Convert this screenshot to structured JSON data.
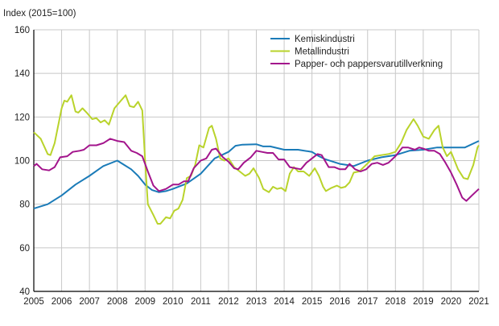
{
  "chart_data": {
    "type": "line",
    "title": "",
    "ylabel": "Index (2015=100)",
    "xlabel": "",
    "xlim": [
      2005,
      2021
    ],
    "ylim": [
      40,
      160
    ],
    "x_ticks": [
      "2005",
      "2006",
      "2007",
      "2008",
      "2009",
      "2010",
      "2011",
      "2012",
      "2013",
      "2014",
      "2015",
      "2016",
      "2017",
      "2018",
      "2019",
      "2020",
      "2021"
    ],
    "y_ticks": [
      "40",
      "60",
      "80",
      "100",
      "120",
      "140",
      "160"
    ],
    "grid": true,
    "legend_position": "top-right",
    "series": [
      {
        "name": "Kemiskindustri",
        "color": "#1a7bb8",
        "points": [
          [
            2005,
            78
          ],
          [
            2005.5,
            80
          ],
          [
            2006,
            84
          ],
          [
            2006.5,
            89
          ],
          [
            2007,
            93
          ],
          [
            2007.5,
            97.5
          ],
          [
            2008,
            100
          ],
          [
            2008.25,
            98
          ],
          [
            2008.5,
            96
          ],
          [
            2008.75,
            93
          ],
          [
            2009,
            89
          ],
          [
            2009.25,
            86.5
          ],
          [
            2009.5,
            85.5
          ],
          [
            2009.75,
            86
          ],
          [
            2010,
            87
          ],
          [
            2010.5,
            89.5
          ],
          [
            2011,
            94
          ],
          [
            2011.5,
            101
          ],
          [
            2012,
            104
          ],
          [
            2012.25,
            106.8
          ],
          [
            2012.5,
            107.3
          ],
          [
            2013,
            107.5
          ],
          [
            2013.25,
            106.5
          ],
          [
            2013.5,
            106.5
          ],
          [
            2014,
            105
          ],
          [
            2014.5,
            105
          ],
          [
            2015,
            104
          ],
          [
            2015.25,
            102
          ],
          [
            2015.5,
            100.5
          ],
          [
            2016,
            98.5
          ],
          [
            2016.25,
            98
          ],
          [
            2016.5,
            97.5
          ],
          [
            2017,
            100
          ],
          [
            2017.5,
            101.5
          ],
          [
            2018,
            102.5
          ],
          [
            2018.5,
            104.5
          ],
          [
            2019,
            105
          ],
          [
            2019.5,
            106
          ],
          [
            2020,
            106
          ],
          [
            2020.5,
            106
          ],
          [
            2021,
            109
          ]
        ]
      },
      {
        "name": "Metallindustri",
        "color": "#b9d32b",
        "points": [
          [
            2005,
            113
          ],
          [
            2005.25,
            110
          ],
          [
            2005.5,
            103
          ],
          [
            2005.6,
            102.5
          ],
          [
            2005.75,
            108
          ],
          [
            2006,
            124
          ],
          [
            2006.1,
            127.5
          ],
          [
            2006.2,
            127
          ],
          [
            2006.35,
            130
          ],
          [
            2006.5,
            122.5
          ],
          [
            2006.6,
            122
          ],
          [
            2006.75,
            124
          ],
          [
            2006.9,
            122
          ],
          [
            2007.1,
            119
          ],
          [
            2007.25,
            119.5
          ],
          [
            2007.4,
            117.5
          ],
          [
            2007.55,
            118.5
          ],
          [
            2007.7,
            116.5
          ],
          [
            2007.9,
            124
          ],
          [
            2008.1,
            127
          ],
          [
            2008.3,
            130
          ],
          [
            2008.45,
            125
          ],
          [
            2008.6,
            124.5
          ],
          [
            2008.75,
            127
          ],
          [
            2008.9,
            123
          ],
          [
            2009,
            100
          ],
          [
            2009.1,
            80
          ],
          [
            2009.3,
            75
          ],
          [
            2009.45,
            71
          ],
          [
            2009.55,
            71
          ],
          [
            2009.75,
            74
          ],
          [
            2009.9,
            73.5
          ],
          [
            2010.05,
            77
          ],
          [
            2010.2,
            78
          ],
          [
            2010.35,
            82
          ],
          [
            2010.5,
            92
          ],
          [
            2010.65,
            93
          ],
          [
            2010.8,
            98
          ],
          [
            2010.95,
            107
          ],
          [
            2011.1,
            106
          ],
          [
            2011.3,
            115
          ],
          [
            2011.4,
            116
          ],
          [
            2011.55,
            110
          ],
          [
            2011.7,
            101
          ],
          [
            2011.85,
            100
          ],
          [
            2012,
            101
          ],
          [
            2012.2,
            97
          ],
          [
            2012.4,
            95
          ],
          [
            2012.6,
            93
          ],
          [
            2012.75,
            94
          ],
          [
            2012.9,
            96.5
          ],
          [
            2013.1,
            92
          ],
          [
            2013.25,
            87
          ],
          [
            2013.45,
            85.5
          ],
          [
            2013.6,
            88
          ],
          [
            2013.75,
            87
          ],
          [
            2013.9,
            87.5
          ],
          [
            2014.05,
            86
          ],
          [
            2014.2,
            94
          ],
          [
            2014.35,
            97
          ],
          [
            2014.5,
            95
          ],
          [
            2014.7,
            95
          ],
          [
            2014.9,
            93
          ],
          [
            2015.1,
            96.5
          ],
          [
            2015.25,
            93
          ],
          [
            2015.4,
            88
          ],
          [
            2015.5,
            86
          ],
          [
            2015.7,
            87.5
          ],
          [
            2015.9,
            88.5
          ],
          [
            2016.05,
            87.5
          ],
          [
            2016.2,
            88
          ],
          [
            2016.35,
            90
          ],
          [
            2016.5,
            94.5
          ],
          [
            2016.7,
            95
          ],
          [
            2016.9,
            97.5
          ],
          [
            2017.1,
            100
          ],
          [
            2017.25,
            102
          ],
          [
            2017.5,
            102.5
          ],
          [
            2017.75,
            103
          ],
          [
            2018,
            104
          ],
          [
            2018.2,
            108
          ],
          [
            2018.4,
            114
          ],
          [
            2018.65,
            119
          ],
          [
            2018.8,
            116
          ],
          [
            2019,
            111
          ],
          [
            2019.2,
            110
          ],
          [
            2019.4,
            114
          ],
          [
            2019.55,
            116
          ],
          [
            2019.7,
            106
          ],
          [
            2019.85,
            102
          ],
          [
            2020,
            104
          ],
          [
            2020.25,
            96
          ],
          [
            2020.45,
            92
          ],
          [
            2020.6,
            91.5
          ],
          [
            2020.8,
            98
          ],
          [
            2020.95,
            106
          ],
          [
            2021,
            107
          ]
        ]
      },
      {
        "name": "Papper- och pappersvarutillverkning",
        "color": "#a3148c",
        "points": [
          [
            2005,
            97.5
          ],
          [
            2005.1,
            98.5
          ],
          [
            2005.3,
            96
          ],
          [
            2005.55,
            95.5
          ],
          [
            2005.75,
            97
          ],
          [
            2005.95,
            101.5
          ],
          [
            2006.2,
            102
          ],
          [
            2006.4,
            104
          ],
          [
            2006.65,
            104.5
          ],
          [
            2006.8,
            105
          ],
          [
            2007,
            107
          ],
          [
            2007.25,
            107
          ],
          [
            2007.5,
            108
          ],
          [
            2007.75,
            110
          ],
          [
            2008,
            109
          ],
          [
            2008.25,
            108.5
          ],
          [
            2008.5,
            104.5
          ],
          [
            2008.7,
            103.5
          ],
          [
            2008.9,
            102
          ],
          [
            2009.1,
            95
          ],
          [
            2009.3,
            88.5
          ],
          [
            2009.5,
            86
          ],
          [
            2009.75,
            87
          ],
          [
            2010,
            89
          ],
          [
            2010.2,
            89
          ],
          [
            2010.4,
            90.5
          ],
          [
            2010.55,
            90.5
          ],
          [
            2010.75,
            96.5
          ],
          [
            2011,
            100
          ],
          [
            2011.2,
            101
          ],
          [
            2011.4,
            105
          ],
          [
            2011.55,
            105.5
          ],
          [
            2011.8,
            101.5
          ],
          [
            2012,
            99.5
          ],
          [
            2012.2,
            96.5
          ],
          [
            2012.35,
            96
          ],
          [
            2012.55,
            99
          ],
          [
            2012.8,
            101.5
          ],
          [
            2013,
            104.5
          ],
          [
            2013.2,
            104
          ],
          [
            2013.4,
            103.5
          ],
          [
            2013.6,
            103.5
          ],
          [
            2013.8,
            100.5
          ],
          [
            2014,
            100.5
          ],
          [
            2014.2,
            97
          ],
          [
            2014.4,
            96.5
          ],
          [
            2014.6,
            96
          ],
          [
            2014.8,
            99
          ],
          [
            2015,
            101
          ],
          [
            2015.2,
            103
          ],
          [
            2015.35,
            102.5
          ],
          [
            2015.6,
            97
          ],
          [
            2015.8,
            97
          ],
          [
            2016,
            96
          ],
          [
            2016.2,
            96
          ],
          [
            2016.35,
            98.5
          ],
          [
            2016.55,
            96
          ],
          [
            2016.75,
            95
          ],
          [
            2016.95,
            96
          ],
          [
            2017.15,
            98.5
          ],
          [
            2017.35,
            99
          ],
          [
            2017.55,
            98
          ],
          [
            2017.75,
            99
          ],
          [
            2018,
            102
          ],
          [
            2018.25,
            106
          ],
          [
            2018.45,
            106
          ],
          [
            2018.7,
            105
          ],
          [
            2018.85,
            106
          ],
          [
            2019,
            105.5
          ],
          [
            2019.2,
            104.5
          ],
          [
            2019.4,
            104.5
          ],
          [
            2019.6,
            103
          ],
          [
            2019.8,
            99
          ],
          [
            2020,
            94.5
          ],
          [
            2020.2,
            89
          ],
          [
            2020.4,
            83
          ],
          [
            2020.55,
            81.5
          ],
          [
            2020.75,
            84
          ],
          [
            2021,
            87
          ]
        ]
      }
    ]
  }
}
